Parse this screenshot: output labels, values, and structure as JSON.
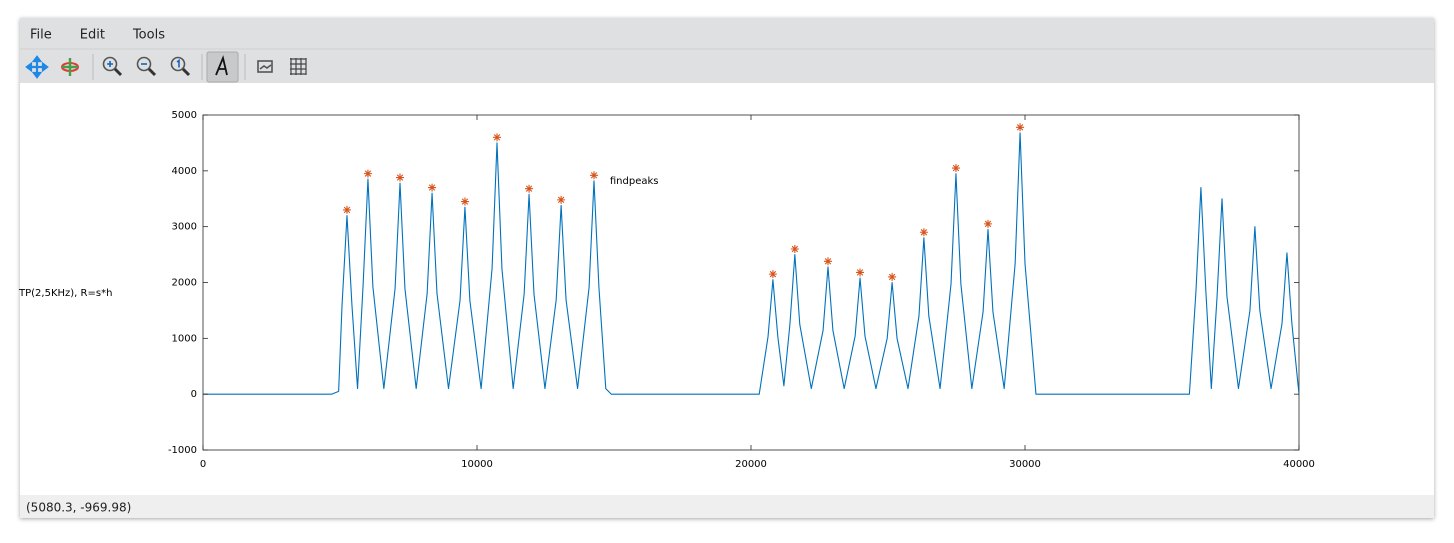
{
  "menu": [
    "File",
    "Edit",
    "Tools"
  ],
  "status": "(5080.3, -969.98)",
  "chart_data": {
    "type": "line",
    "ylabel": "TP(2,5KHz), R=s*h",
    "annotation": {
      "text": "findpeaks",
      "x": 14850,
      "y": 3820
    },
    "xlim": [
      0,
      40000
    ],
    "xticks": [
      0,
      10000,
      20000,
      30000,
      40000
    ],
    "ylim": [
      -1000,
      5000
    ],
    "yticks": [
      -1000,
      0,
      1000,
      2000,
      3000,
      4000,
      5000
    ],
    "series": [
      {
        "color": "#0072bd",
        "x": [
          0,
          4700,
          4950,
          5075,
          5255,
          5435,
          5640,
          5840,
          6020,
          6200,
          6600,
          7010,
          7190,
          7370,
          7780,
          8180,
          8360,
          8540,
          8960,
          9380,
          9560,
          9740,
          10150,
          10550,
          10730,
          10910,
          11320,
          11720,
          11900,
          12080,
          12480,
          12890,
          13070,
          13250,
          13670,
          14090,
          14270,
          14450,
          14700,
          14900,
          20300,
          20620,
          20800,
          20980,
          21200,
          21420,
          21600,
          21780,
          22200,
          22630,
          22810,
          22990,
          23400,
          23800,
          23980,
          24160,
          24560,
          24970,
          25150,
          25330,
          25730,
          26130,
          26310,
          26490,
          26900,
          27300,
          27480,
          27660,
          28060,
          28470,
          28650,
          28830,
          29240,
          29640,
          29820,
          30000,
          30400,
          36000,
          36240,
          36420,
          36600,
          36800,
          37010,
          37190,
          37370,
          37790,
          38210,
          38390,
          38570,
          38980,
          39380,
          39560,
          39740,
          40000
        ],
        "values": [
          0,
          0,
          50,
          1600,
          3200,
          1600,
          100,
          1925,
          3850,
          1925,
          100,
          1890,
          3780,
          1890,
          100,
          1800,
          3600,
          1800,
          100,
          1675,
          3350,
          1675,
          100,
          2250,
          4500,
          2250,
          100,
          1790,
          3580,
          1790,
          100,
          1690,
          3380,
          1690,
          100,
          1910,
          3820,
          1910,
          100,
          0,
          0,
          1025,
          2050,
          1025,
          150,
          1250,
          2500,
          1250,
          100,
          1140,
          2280,
          1140,
          100,
          1040,
          2080,
          1040,
          100,
          1000,
          2000,
          1000,
          100,
          1400,
          2800,
          1400,
          100,
          1975,
          3950,
          1975,
          100,
          1475,
          2950,
          1475,
          100,
          2340,
          4680,
          2340,
          0,
          0,
          1850,
          3700,
          1850,
          100,
          1750,
          3500,
          1750,
          100,
          1500,
          3000,
          1500,
          100,
          1265,
          2530,
          1265,
          0
        ]
      },
      {
        "color": "#d95319",
        "marker": "*",
        "x": [
          5255,
          6020,
          7190,
          8360,
          9560,
          10730,
          11900,
          13070,
          14270,
          20800,
          21600,
          22810,
          23980,
          25150,
          26310,
          27480,
          28650,
          29820
        ],
        "values": [
          3300,
          3950,
          3880,
          3700,
          3450,
          4600,
          3680,
          3480,
          3920,
          2150,
          2600,
          2380,
          2180,
          2100,
          2900,
          4050,
          3050,
          4780
        ]
      }
    ]
  }
}
